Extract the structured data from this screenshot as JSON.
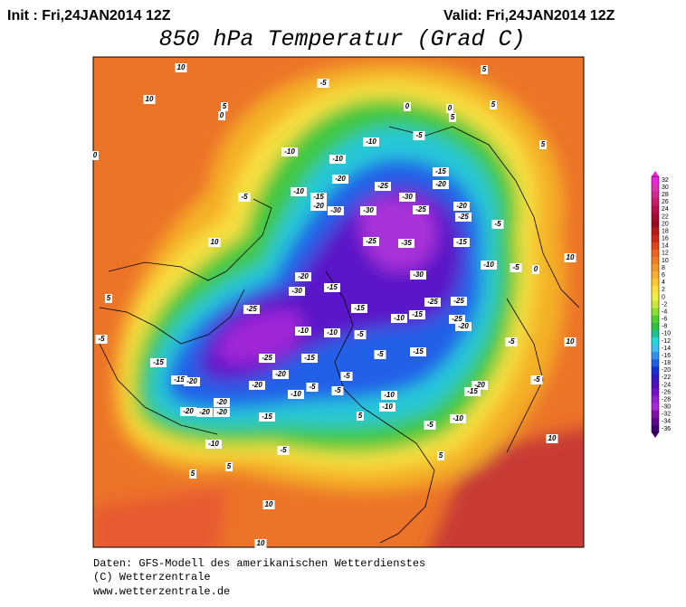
{
  "header": {
    "init": "Init : Fri,24JAN2014 12Z",
    "valid": "Valid: Fri,24JAN2014 12Z",
    "title": "850 hPa Temperatur (Grad C)"
  },
  "colorbar": {
    "ticks": [
      32,
      30,
      28,
      26,
      24,
      22,
      20,
      18,
      16,
      14,
      12,
      10,
      8,
      6,
      4,
      2,
      0,
      -2,
      -4,
      -6,
      -8,
      -10,
      -12,
      -14,
      -16,
      -18,
      -20,
      -22,
      -24,
      -26,
      -28,
      -30,
      -32,
      -34,
      -36
    ],
    "colors": [
      "#f020e0",
      "#e030b8",
      "#d02890",
      "#c81c68",
      "#b81048",
      "#a80c30",
      "#980c20",
      "#b81818",
      "#d02818",
      "#e04418",
      "#ec6420",
      "#f07e20",
      "#f4982c",
      "#f8b030",
      "#fcc830",
      "#fce040",
      "#f0f040",
      "#c8e83c",
      "#8ce030",
      "#50d030",
      "#30c040",
      "#20c090",
      "#20d8d8",
      "#40c0f0",
      "#3090f0",
      "#2060e8",
      "#1830d8",
      "#3018c8",
      "#5010c0",
      "#7010c8",
      "#9020d0",
      "#a828d8",
      "#8010a8",
      "#600890",
      "#400070"
    ]
  },
  "map_labels": [
    "10",
    "10",
    "5",
    "0",
    "-5",
    "5",
    "5",
    "0",
    "0",
    "5",
    "-10",
    "-5",
    "-10",
    "5",
    "0",
    "-15",
    "-20",
    "-10",
    "-20",
    "-25",
    "-10",
    "-15",
    "-30",
    "-5",
    "-20",
    "-25",
    "-30",
    "-30",
    "-20",
    "-25",
    "-5",
    "-35",
    "-25",
    "-15",
    "10",
    "10",
    "-10",
    "-5",
    "0",
    "-20",
    "-30",
    "-15",
    "-30",
    "5",
    "-25",
    "-15",
    "-25",
    "-25",
    "-10",
    "-15",
    "-25",
    "-20",
    "-5",
    "-10",
    "-10",
    "-5",
    "10",
    "-5",
    "-25",
    "-15",
    "-15",
    "-5",
    "-5",
    "-15",
    "-15",
    "-20",
    "-20",
    "-20",
    "-10",
    "-5",
    "-5",
    "-20",
    "-15",
    "-10",
    "-10",
    "-5",
    "-20",
    "-20",
    "-20",
    "-20",
    "-15",
    "-5",
    "-10",
    "5",
    "-10",
    "5",
    "5",
    "-5",
    "10",
    "5",
    "10",
    "10"
  ],
  "footer": [
    "Daten: GFS-Modell des amerikanischen Wetterdienstes",
    "(C) Wetterzentrale",
    "www.wetterzentrale.de"
  ]
}
